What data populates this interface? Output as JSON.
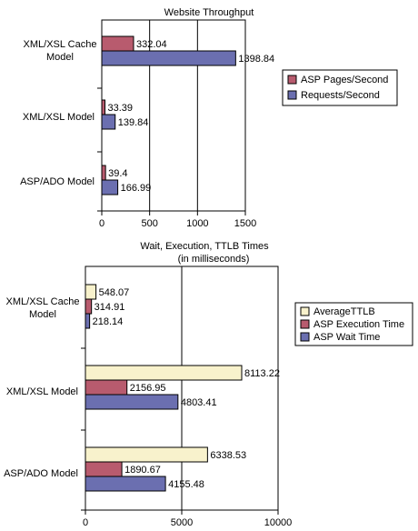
{
  "chart_data": [
    {
      "type": "bar",
      "orientation": "horizontal",
      "title": "Website Throughput",
      "categories": [
        "XML/XSL Cache Model",
        "XML/XSL Model",
        "ASP/ADO Model"
      ],
      "series": [
        {
          "name": "ASP Pages/Second",
          "color": "#b85b6e",
          "values": [
            332.04,
            33.39,
            39.4
          ],
          "labels": [
            "332.04",
            "33.39",
            "39.4"
          ]
        },
        {
          "name": "Requests/Second",
          "color": "#6b6fb0",
          "values": [
            1398.84,
            139.84,
            166.99
          ],
          "labels": [
            "1398.84",
            "139.84",
            "166.99"
          ]
        }
      ],
      "xlim": [
        0,
        1500
      ],
      "xticks": [
        0,
        500,
        1000,
        1500
      ],
      "xtick_labels": [
        "0",
        "500",
        "1000",
        "1500"
      ],
      "gridlines": [
        500,
        1000
      ],
      "legend_position": "right"
    },
    {
      "type": "bar",
      "orientation": "horizontal",
      "title": "Wait, Execution, TTLB Times",
      "subtitle": "(in milliseconds)",
      "categories": [
        "XML/XSL Cache Model",
        "XML/XSL Model",
        "ASP/ADO Model"
      ],
      "series": [
        {
          "name": "AverageTTLB",
          "color": "#f8f2cc",
          "values": [
            548.07,
            8113.22,
            6338.53
          ],
          "labels": [
            "548.07",
            "8113.22",
            "6338.53"
          ]
        },
        {
          "name": "ASP Execution Time",
          "color": "#b85b6e",
          "values": [
            314.91,
            2156.95,
            1890.67
          ],
          "labels": [
            "314.91",
            "2156.95",
            "1890.67"
          ]
        },
        {
          "name": "ASP Wait Time",
          "color": "#6b6fb0",
          "values": [
            218.14,
            4803.41,
            4155.48
          ],
          "labels": [
            "218.14",
            "4803.41",
            "4155.48"
          ]
        }
      ],
      "xlim": [
        0,
        10000
      ],
      "xticks": [
        0,
        5000,
        10000
      ],
      "xtick_labels": [
        "0",
        "5000",
        "10000"
      ],
      "gridlines": [
        5000
      ],
      "legend_position": "right"
    }
  ]
}
